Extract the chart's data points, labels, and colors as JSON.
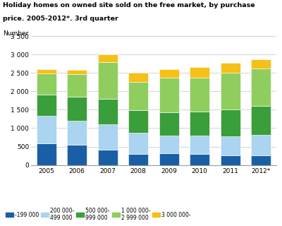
{
  "years": [
    "2005",
    "2006",
    "2007",
    "2008",
    "2009",
    "2010",
    "2011",
    "2012*"
  ],
  "series": {
    "cat1": [
      590,
      550,
      410,
      300,
      310,
      300,
      255,
      270
    ],
    "cat2": [
      740,
      660,
      700,
      570,
      490,
      500,
      520,
      540
    ],
    "cat3": [
      580,
      640,
      690,
      620,
      640,
      650,
      730,
      800
    ],
    "cat4": [
      570,
      620,
      1000,
      760,
      930,
      920,
      1000,
      1020
    ],
    "cat5": [
      130,
      120,
      210,
      255,
      230,
      280,
      270,
      240
    ]
  },
  "colors": [
    "#1a5fa6",
    "#aad4f0",
    "#3a9e3a",
    "#8fce5e",
    "#f5c018"
  ],
  "title_line1": "Holiday homes on owned site sold on the free market, by purchase",
  "title_line2": "price. 2005-2012*. 3rd quarter",
  "ylabel": "Number",
  "ylim": [
    0,
    3500
  ],
  "yticks": [
    0,
    500,
    1000,
    1500,
    2000,
    2500,
    3000,
    3500
  ],
  "legend_labels": [
    "-199 000",
    "200 000-\n499 000",
    "500 000-\n999 000",
    "1 000 000-\n2 999 000",
    "3 000 000-"
  ],
  "background_color": "#ffffff",
  "grid_color": "#cccccc"
}
